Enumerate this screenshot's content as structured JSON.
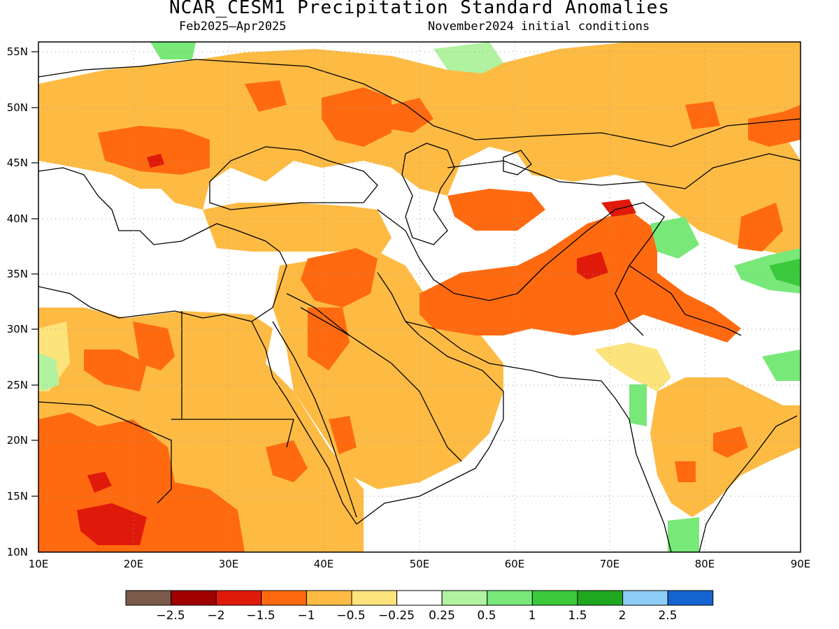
{
  "title": "NCAR_CESM1 Precipitation Standard Anomalies",
  "subtitle_left": "Feb2025–Apr2025",
  "subtitle_right": "November2024 initial conditions",
  "lat_labels": [
    "55N",
    "50N",
    "45N",
    "40N",
    "35N",
    "30N",
    "25N",
    "20N",
    "15N",
    "10N"
  ],
  "lon_labels": [
    "10E",
    "20E",
    "30E",
    "40E",
    "50E",
    "60E",
    "70E",
    "80E",
    "90E"
  ],
  "colorbar": {
    "colors": [
      "#7a5b4b",
      "#a00000",
      "#e01a0a",
      "#ff6a10",
      "#fdbb44",
      "#fde37c",
      "#ffffff",
      "#b0f2a0",
      "#78e878",
      "#3ac93a",
      "#1fa81f",
      "#8ecdf5",
      "#1563d0"
    ],
    "labels": [
      "−2.5",
      "−2",
      "−1.5",
      "−1",
      "−0.5",
      "−0.25",
      "0.25",
      "0.5",
      "1",
      "1.5",
      "2",
      "2.5"
    ]
  },
  "anomaly_regions": [
    {
      "name": "north-africa-west",
      "level": "-0.5"
    },
    {
      "name": "sahel-core",
      "level": "-1"
    },
    {
      "name": "sahel-max",
      "level": "-1.5"
    },
    {
      "name": "iran-afghan-core",
      "level": "-1"
    },
    {
      "name": "afghanistan-max",
      "level": "-1.5"
    },
    {
      "name": "tibet-wet",
      "level": "0.5"
    },
    {
      "name": "india-west-wet",
      "level": "0.5"
    }
  ]
}
